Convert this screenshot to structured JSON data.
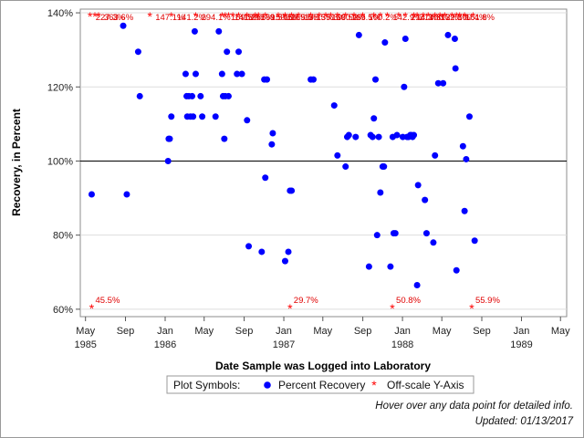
{
  "chart_data": {
    "type": "scatter",
    "xlabel": "Date Sample was Logged into Laboratory",
    "ylabel": "Recovery, in Percent",
    "ylim": [
      58,
      141
    ],
    "xlim": [
      "1985-04-15",
      "1989-05-20"
    ],
    "reference_line_y": 100,
    "y_ticks": [
      60,
      80,
      100,
      120,
      140
    ],
    "y_tick_labels": [
      "60%",
      "80%",
      "100%",
      "120%",
      "140%"
    ],
    "x_ticks": [
      {
        "date": "1985-05-01",
        "label": "May",
        "year": "1985"
      },
      {
        "date": "1985-09-01",
        "label": "Sep",
        "year": ""
      },
      {
        "date": "1986-01-01",
        "label": "Jan",
        "year": "1986"
      },
      {
        "date": "1986-05-01",
        "label": "May",
        "year": ""
      },
      {
        "date": "1986-09-01",
        "label": "Sep",
        "year": ""
      },
      {
        "date": "1987-01-01",
        "label": "Jan",
        "year": "1987"
      },
      {
        "date": "1987-05-01",
        "label": "May",
        "year": ""
      },
      {
        "date": "1987-09-01",
        "label": "Sep",
        "year": ""
      },
      {
        "date": "1988-01-01",
        "label": "Jan",
        "year": "1988"
      },
      {
        "date": "1988-05-01",
        "label": "May",
        "year": ""
      },
      {
        "date": "1988-09-01",
        "label": "Sep",
        "year": ""
      },
      {
        "date": "1989-01-01",
        "label": "Jan",
        "year": "1989"
      },
      {
        "date": "1989-05-01",
        "label": "May",
        "year": ""
      }
    ],
    "series": [
      {
        "name": "Percent Recovery",
        "points": [
          [
            "1985-05-20",
            91
          ],
          [
            "1985-08-25",
            136.5
          ],
          [
            "1985-09-05",
            91
          ],
          [
            "1985-10-10",
            129.5
          ],
          [
            "1985-10-15",
            117.5
          ],
          [
            "1986-01-10",
            100
          ],
          [
            "1986-01-12",
            106
          ],
          [
            "1986-01-15",
            106
          ],
          [
            "1986-01-20",
            112
          ],
          [
            "1986-03-05",
            123.5
          ],
          [
            "1986-03-08",
            117.5
          ],
          [
            "1986-03-10",
            112
          ],
          [
            "1986-03-15",
            117.5
          ],
          [
            "1986-03-20",
            112
          ],
          [
            "1986-03-25",
            117.5
          ],
          [
            "1986-03-28",
            112
          ],
          [
            "1986-04-02",
            135
          ],
          [
            "1986-04-05",
            123.5
          ],
          [
            "1986-04-20",
            117.5
          ],
          [
            "1986-04-25",
            112
          ],
          [
            "1986-06-05",
            112
          ],
          [
            "1986-06-15",
            135
          ],
          [
            "1986-06-25",
            123.5
          ],
          [
            "1986-06-28",
            117.5
          ],
          [
            "1986-07-02",
            106
          ],
          [
            "1986-07-05",
            117.5
          ],
          [
            "1986-07-10",
            129.5
          ],
          [
            "1986-07-15",
            117.5
          ],
          [
            "1986-08-10",
            123.5
          ],
          [
            "1986-08-15",
            129.5
          ],
          [
            "1986-08-25",
            123.5
          ],
          [
            "1986-09-10",
            111
          ],
          [
            "1986-09-15",
            77
          ],
          [
            "1986-10-25",
            75.5
          ],
          [
            "1986-11-02",
            122
          ],
          [
            "1986-11-05",
            95.5
          ],
          [
            "1986-11-10",
            122
          ],
          [
            "1986-11-25",
            104.5
          ],
          [
            "1986-11-28",
            107.5
          ],
          [
            "1987-01-05",
            73
          ],
          [
            "1987-01-15",
            75.5
          ],
          [
            "1987-01-20",
            92
          ],
          [
            "1987-01-25",
            92
          ],
          [
            "1987-03-25",
            122
          ],
          [
            "1987-04-02",
            122
          ],
          [
            "1987-06-05",
            115
          ],
          [
            "1987-06-15",
            101.5
          ],
          [
            "1987-07-10",
            98.5
          ],
          [
            "1987-07-15",
            106.5
          ],
          [
            "1987-07-20",
            107
          ],
          [
            "1987-08-10",
            106.5
          ],
          [
            "1987-08-20",
            134
          ],
          [
            "1987-09-20",
            71.5
          ],
          [
            "1987-09-25",
            107
          ],
          [
            "1987-10-01",
            106.5
          ],
          [
            "1987-10-05",
            111.5
          ],
          [
            "1987-10-10",
            122
          ],
          [
            "1987-10-15",
            80
          ],
          [
            "1987-10-20",
            106.5
          ],
          [
            "1987-10-25",
            91.5
          ],
          [
            "1987-11-01",
            98.5
          ],
          [
            "1987-11-05",
            98.5
          ],
          [
            "1987-11-08",
            132
          ],
          [
            "1987-11-25",
            71.5
          ],
          [
            "1987-12-02",
            106.5
          ],
          [
            "1987-12-05",
            80.5
          ],
          [
            "1987-12-10",
            80.5
          ],
          [
            "1987-12-15",
            107
          ],
          [
            "1988-01-02",
            106.5
          ],
          [
            "1988-01-06",
            120
          ],
          [
            "1988-01-10",
            133
          ],
          [
            "1988-01-15",
            106.5
          ],
          [
            "1988-01-20",
            106.5
          ],
          [
            "1988-01-25",
            107
          ],
          [
            "1988-01-28",
            107
          ],
          [
            "1988-02-01",
            106.5
          ],
          [
            "1988-02-05",
            107
          ],
          [
            "1988-02-15",
            66.5
          ],
          [
            "1988-02-18",
            93.5
          ],
          [
            "1988-03-10",
            89.5
          ],
          [
            "1988-03-15",
            80.5
          ],
          [
            "1988-04-05",
            78
          ],
          [
            "1988-04-10",
            101.5
          ],
          [
            "1988-04-20",
            121
          ],
          [
            "1988-05-05",
            121
          ],
          [
            "1988-05-20",
            134
          ],
          [
            "1988-06-10",
            133
          ],
          [
            "1988-06-12",
            125
          ],
          [
            "1988-06-15",
            70.5
          ],
          [
            "1988-07-05",
            104
          ],
          [
            "1988-07-10",
            86.5
          ],
          [
            "1988-07-15",
            100.5
          ],
          [
            "1988-07-25",
            112
          ],
          [
            "1988-08-10",
            78.5
          ]
        ]
      },
      {
        "name": "Off-scale Y-Axis",
        "top": [
          [
            "1985-05-15",
            "227.3%"
          ],
          [
            "1985-05-30",
            ""
          ],
          [
            "1985-06-10",
            "363.6%"
          ],
          [
            "1985-11-15",
            "147.1%"
          ],
          [
            "1986-01-20",
            "141.2%"
          ],
          [
            "1986-04-05",
            "294.1%"
          ],
          [
            "1986-06-25",
            ""
          ],
          [
            "1986-07-05",
            "169.5%"
          ],
          [
            "1986-07-15",
            "141.2%"
          ],
          [
            "1986-07-28",
            ""
          ],
          [
            "1986-08-15",
            "189.5%"
          ],
          [
            "1986-09-10",
            ""
          ],
          [
            "1986-10-05",
            "169.5%"
          ],
          [
            "1986-10-15",
            ""
          ],
          [
            "1986-11-05",
            "159.5%"
          ],
          [
            "1986-12-15",
            "169.5%"
          ],
          [
            "1987-01-05",
            "169.5%"
          ],
          [
            "1987-01-25",
            ""
          ],
          [
            "1987-02-15",
            "135.5%"
          ],
          [
            "1987-03-25",
            "135.6%"
          ],
          [
            "1987-04-20",
            ""
          ],
          [
            "1987-05-10",
            "169.5%"
          ],
          [
            "1987-05-25",
            "100.2%"
          ],
          [
            "1987-06-15",
            ""
          ],
          [
            "1987-07-10",
            "169.5%"
          ],
          [
            "1987-08-05",
            ""
          ],
          [
            "1987-09-01",
            "100.2%"
          ],
          [
            "1987-10-05",
            ""
          ],
          [
            "1987-10-25",
            ""
          ],
          [
            "1987-11-15",
            "142.9%"
          ],
          [
            "1987-12-20",
            ""
          ],
          [
            "1988-01-10",
            "214.3%"
          ],
          [
            "1988-02-05",
            "214.3%"
          ],
          [
            "1988-02-15",
            ""
          ],
          [
            "1988-03-05",
            "100.2%"
          ],
          [
            "1988-03-20",
            ""
          ],
          [
            "1988-04-10",
            "132.8%"
          ],
          [
            "1988-04-25",
            ""
          ],
          [
            "1988-05-10",
            ""
          ],
          [
            "1988-06-01",
            "100.4%"
          ],
          [
            "1988-06-15",
            ""
          ],
          [
            "1988-06-25",
            "161.8%"
          ],
          [
            "1988-07-10",
            ""
          ],
          [
            "1988-08-05",
            ""
          ]
        ],
        "bottom": [
          [
            "1985-05-20",
            "45.5%"
          ],
          [
            "1987-01-20",
            "29.7%"
          ],
          [
            "1987-12-01",
            "50.8%"
          ],
          [
            "1988-08-01",
            "55.9%"
          ]
        ]
      }
    ],
    "legend": {
      "title": "Plot Symbols:",
      "placement": "bottom-center"
    },
    "colors": {
      "points": "#0000ff",
      "offscale": "#ff0000",
      "reference": "#000000",
      "grid": "#dddddd"
    }
  },
  "footer": {
    "note": "Hover over any data point for detailed info.",
    "updated": "Updated: 01/13/2017"
  }
}
